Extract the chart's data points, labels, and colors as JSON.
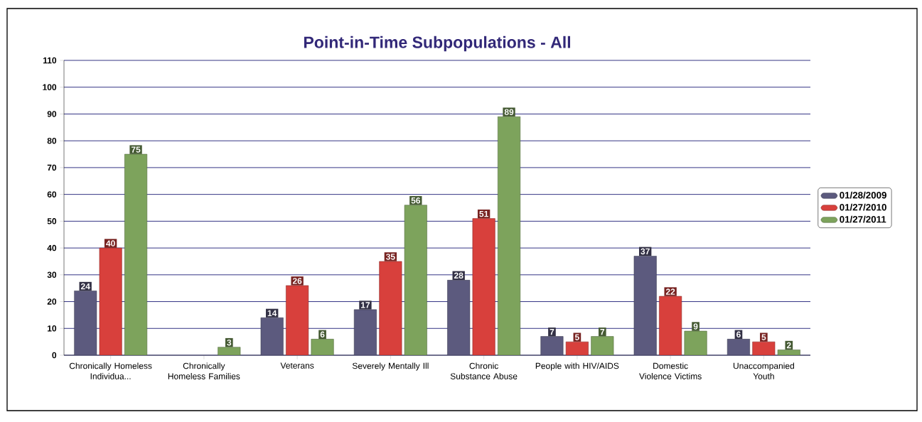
{
  "chart_data": {
    "type": "bar",
    "title": "Point-in-Time Subpopulations - All",
    "categories": [
      "Chronically Homeless Individua...",
      "Chronically Homeless Families",
      "Veterans",
      "Severely Mentally Ill",
      "Chronic Substance Abuse",
      "People with HIV/AIDS",
      "Domestic Violence Victims",
      "Unaccompanied Youth"
    ],
    "series": [
      {
        "name": "01/28/2009",
        "color": "#5c5a7e",
        "values": [
          24,
          null,
          14,
          17,
          28,
          7,
          37,
          6
        ],
        "value_labels": [
          "24",
          null,
          "14",
          "17",
          "28",
          "7",
          "37",
          "6"
        ]
      },
      {
        "name": "01/27/2010",
        "color": "#d8403c",
        "values": [
          40,
          null,
          26,
          35,
          51,
          5,
          22,
          5
        ],
        "value_labels": [
          "40",
          null,
          "26",
          "35",
          "51",
          "5",
          "22",
          "5"
        ]
      },
      {
        "name": "01/27/2011",
        "color": "#7da35c",
        "values": [
          75,
          3,
          6,
          56,
          89,
          7,
          9,
          2
        ],
        "value_labels": [
          "75",
          "3",
          "6",
          "56",
          "89",
          "7",
          "9",
          "2"
        ]
      }
    ],
    "ylim": [
      0,
      110
    ],
    "yticks": [
      0,
      10,
      20,
      30,
      40,
      50,
      60,
      70,
      80,
      90,
      100,
      110
    ],
    "grid": "y",
    "legend": "right"
  }
}
